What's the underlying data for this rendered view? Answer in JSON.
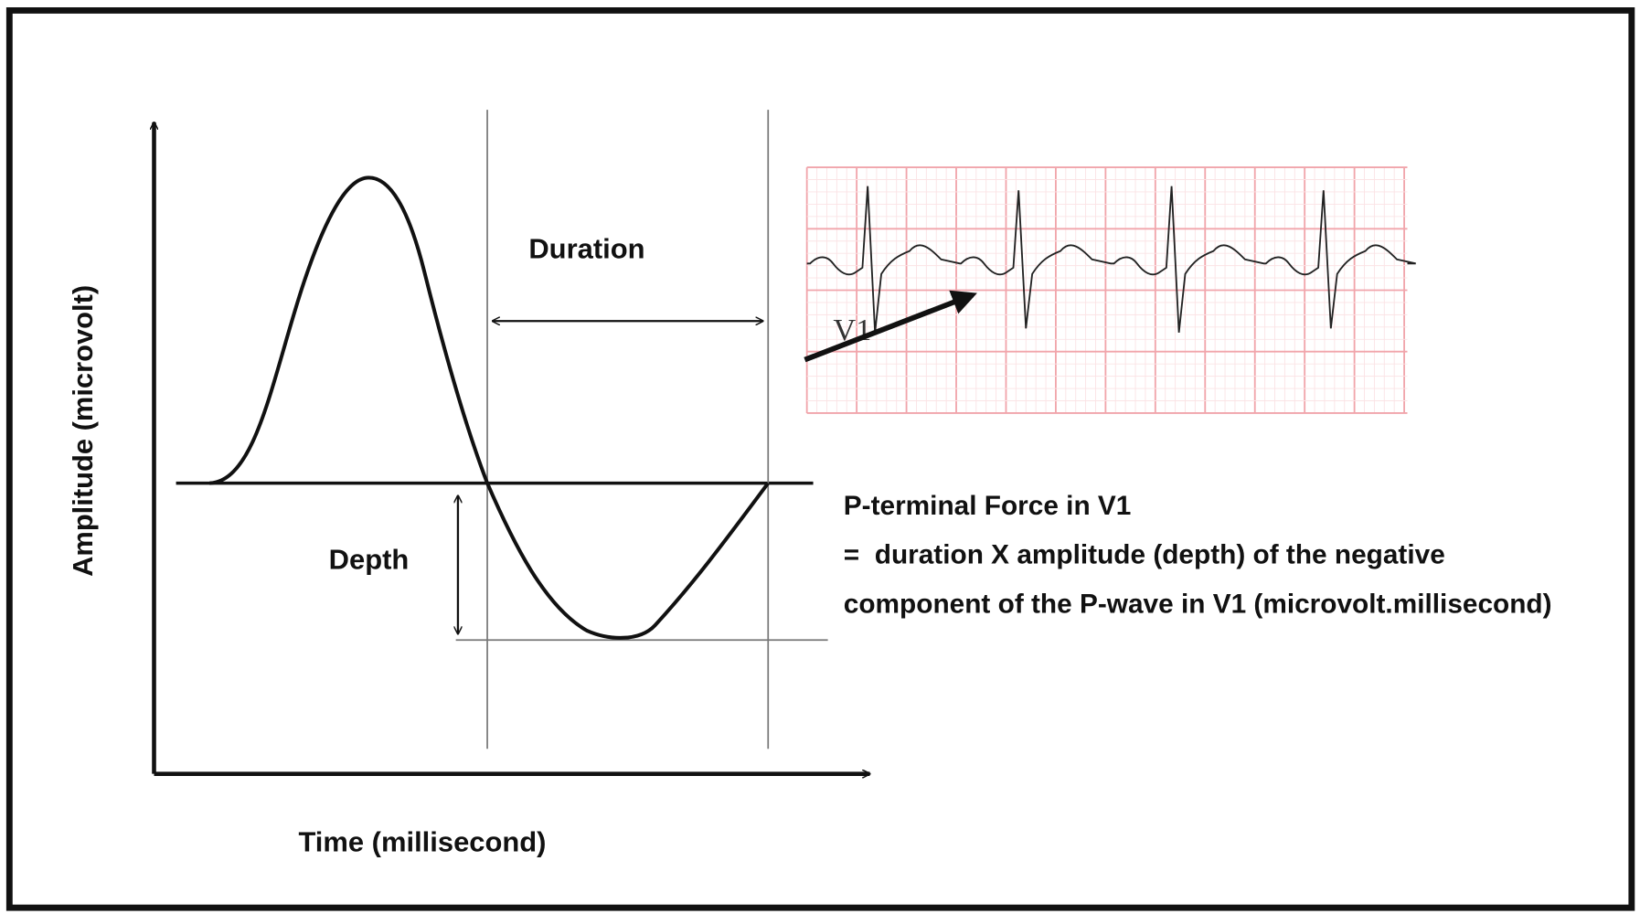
{
  "axis_labels": {
    "y": "Amplitude (microvolt)",
    "x": "Time (millisecond)"
  },
  "labels": {
    "duration": "Duration",
    "depth": "Depth",
    "lead": "V1"
  },
  "definition": {
    "lines": [
      "P-terminal Force in V1",
      "=  duration X amplitude (depth) of the negative",
      "component of the P-wave in V1 (microvolt.millisecond)"
    ]
  }
}
